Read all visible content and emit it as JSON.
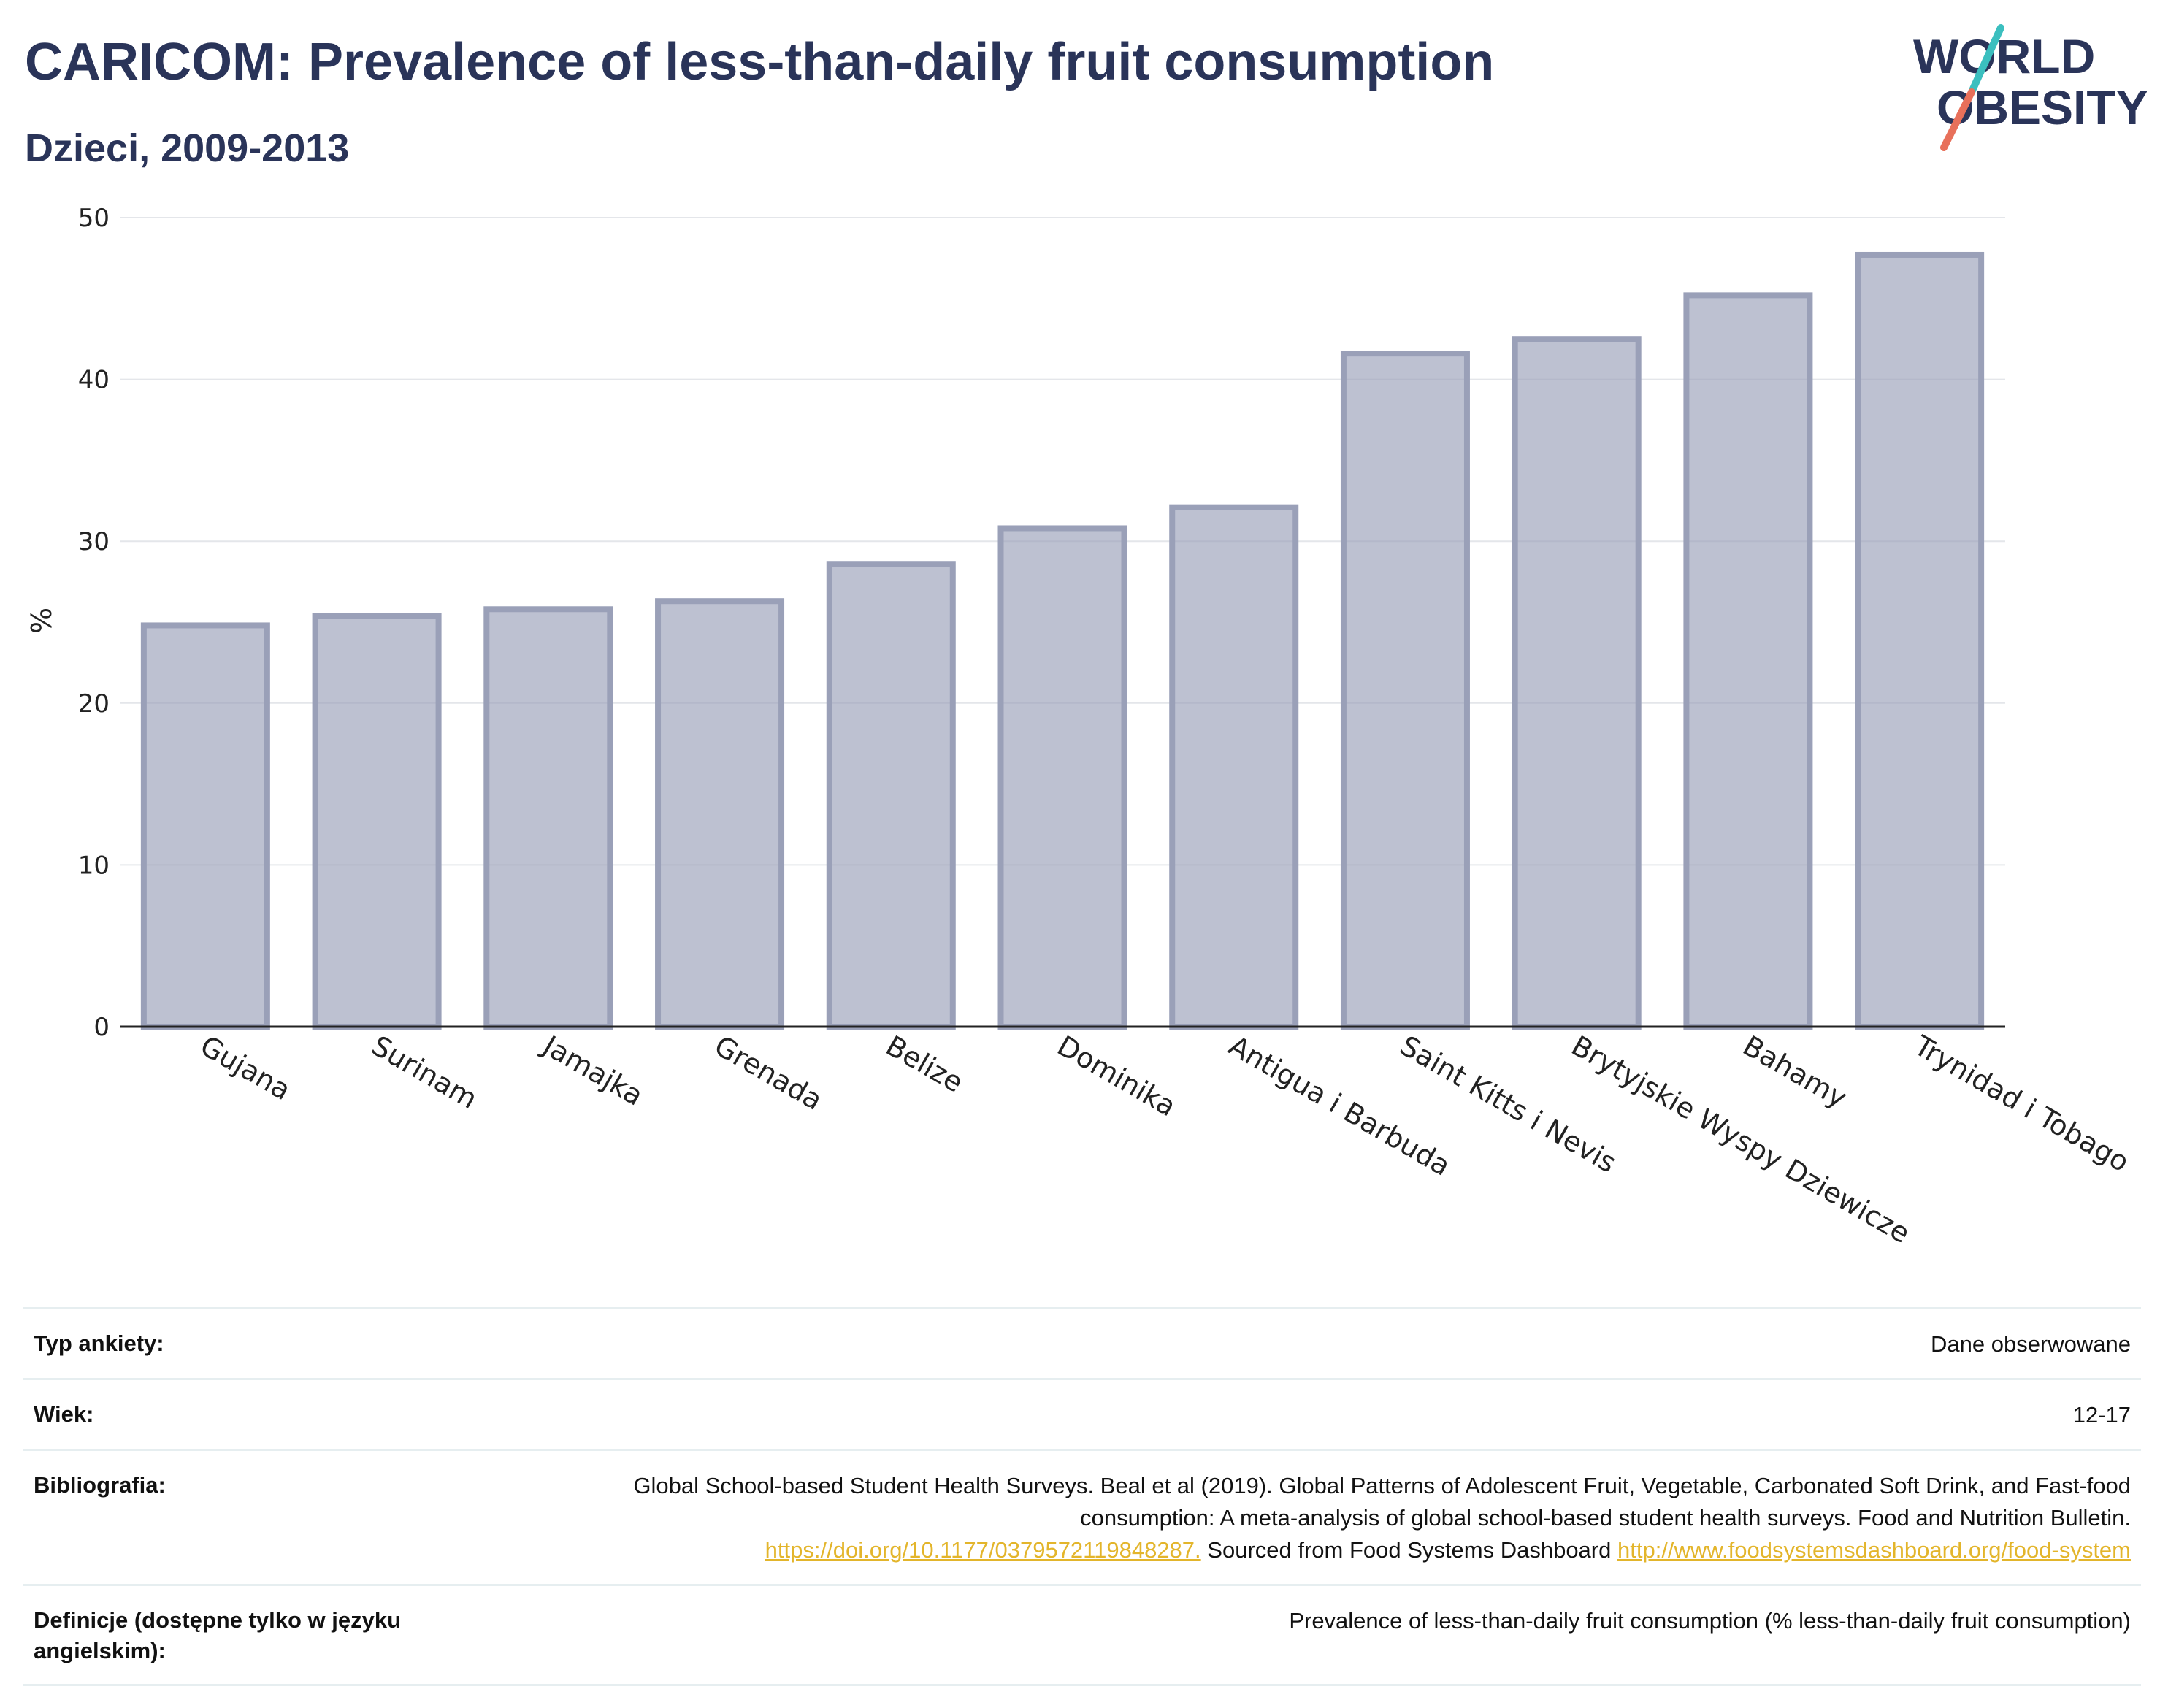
{
  "header": {
    "title": "CARICOM: Prevalence of less-than-daily fruit consumption",
    "subtitle": "Dzieci, 2009-2013"
  },
  "logo": {
    "line1": "WORLD",
    "line2": "OBESITY",
    "text_color": "#2a3459",
    "slash_top_color": "#3bbfbf",
    "slash_bottom_color": "#e8705a"
  },
  "chart_data": {
    "type": "bar",
    "categories": [
      "Gujana",
      "Surinam",
      "Jamajka",
      "Grenada",
      "Belize",
      "Dominika",
      "Antigua i Barbuda",
      "Saint Kitts i Nevis",
      "Brytyjskie Wyspy Dziewicze",
      "Bahamy",
      "Trynidad i Tobago"
    ],
    "values": [
      24.8,
      25.4,
      25.8,
      26.3,
      28.6,
      30.8,
      32.1,
      41.6,
      42.5,
      45.2,
      47.7
    ],
    "ylabel": "%",
    "ylim": [
      0,
      50
    ],
    "yticks": [
      0,
      10,
      20,
      30,
      40,
      50
    ],
    "grid": true,
    "bar_color": "#9aa0b8"
  },
  "meta": {
    "survey_type": {
      "label": "Typ ankiety:",
      "value": "Dane obserwowane"
    },
    "age": {
      "label": "Wiek:",
      "value": "12-17"
    },
    "bibliography": {
      "label": "Bibliografia:",
      "text1": "Global School-based Student Health Surveys. Beal et al (2019). Global Patterns of Adolescent Fruit, Vegetable, Carbonated Soft Drink, and Fast-food consumption: A meta-analysis of global school-based student health surveys. Food and Nutrition Bulletin.",
      "link1": "https://doi.org/10.1177/0379572119848287.",
      "text2": "Sourced from Food Systems Dashboard",
      "link2": "http://www.foodsystemsdashboard.org/food-system"
    },
    "definitions": {
      "label": "Definicje (dostępne tylko w języku angielskim):",
      "value": "Prevalence of less-than-daily fruit consumption (% less-than-daily fruit consumption)"
    }
  }
}
